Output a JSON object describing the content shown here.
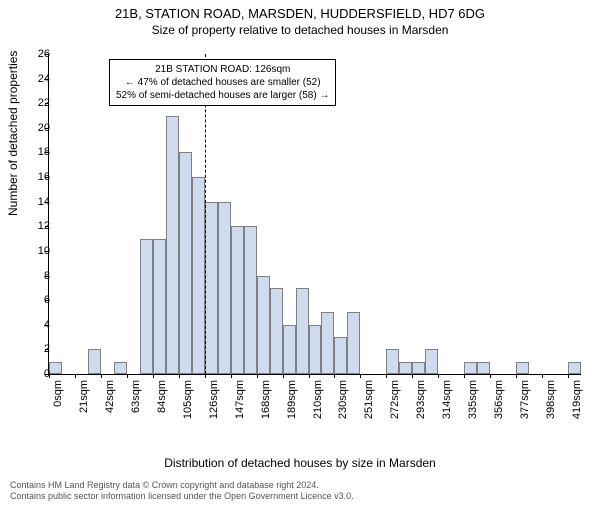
{
  "title": "21B, STATION ROAD, MARSDEN, HUDDERSFIELD, HD7 6DG",
  "subtitle": "Size of property relative to detached houses in Marsden",
  "y_axis_label": "Number of detached properties",
  "x_axis_label": "Distribution of detached houses by size in Marsden",
  "chart": {
    "type": "histogram",
    "bar_color": "#cedbef",
    "bar_border_color": "#808080",
    "background_color": "#ffffff",
    "axis_color": "#000000",
    "ylim": [
      0,
      26
    ],
    "ytick_step": 2,
    "title_fontsize": 13,
    "label_fontsize": 12,
    "tick_fontsize": 11,
    "annotation_fontsize": 10,
    "x_ticks": [
      "0sqm",
      "21sqm",
      "42sqm",
      "63sqm",
      "84sqm",
      "105sqm",
      "126sqm",
      "147sqm",
      "168sqm",
      "189sqm",
      "210sqm",
      "230sqm",
      "251sqm",
      "272sqm",
      "293sqm",
      "314sqm",
      "335sqm",
      "356sqm",
      "377sqm",
      "398sqm",
      "419sqm"
    ],
    "values": [
      1,
      0,
      0,
      2,
      0,
      1,
      0,
      11,
      11,
      21,
      18,
      16,
      14,
      14,
      12,
      12,
      8,
      7,
      4,
      7,
      4,
      5,
      3,
      5,
      0,
      0,
      2,
      1,
      1,
      2,
      0,
      0,
      1,
      1,
      0,
      0,
      1,
      0,
      0,
      0,
      1
    ],
    "marker_bin_index": 12,
    "marker_line_color": "#000000"
  },
  "annotation": {
    "line1": "21B STATION ROAD: 126sqm",
    "line2": "← 47% of detached houses are smaller (52)",
    "line3": "52% of semi-detached houses are larger (58) →"
  },
  "credits": {
    "line1": "Contains HM Land Registry data © Crown copyright and database right 2024.",
    "line2": "Contains public sector information licensed under the Open Government Licence v3.0."
  }
}
